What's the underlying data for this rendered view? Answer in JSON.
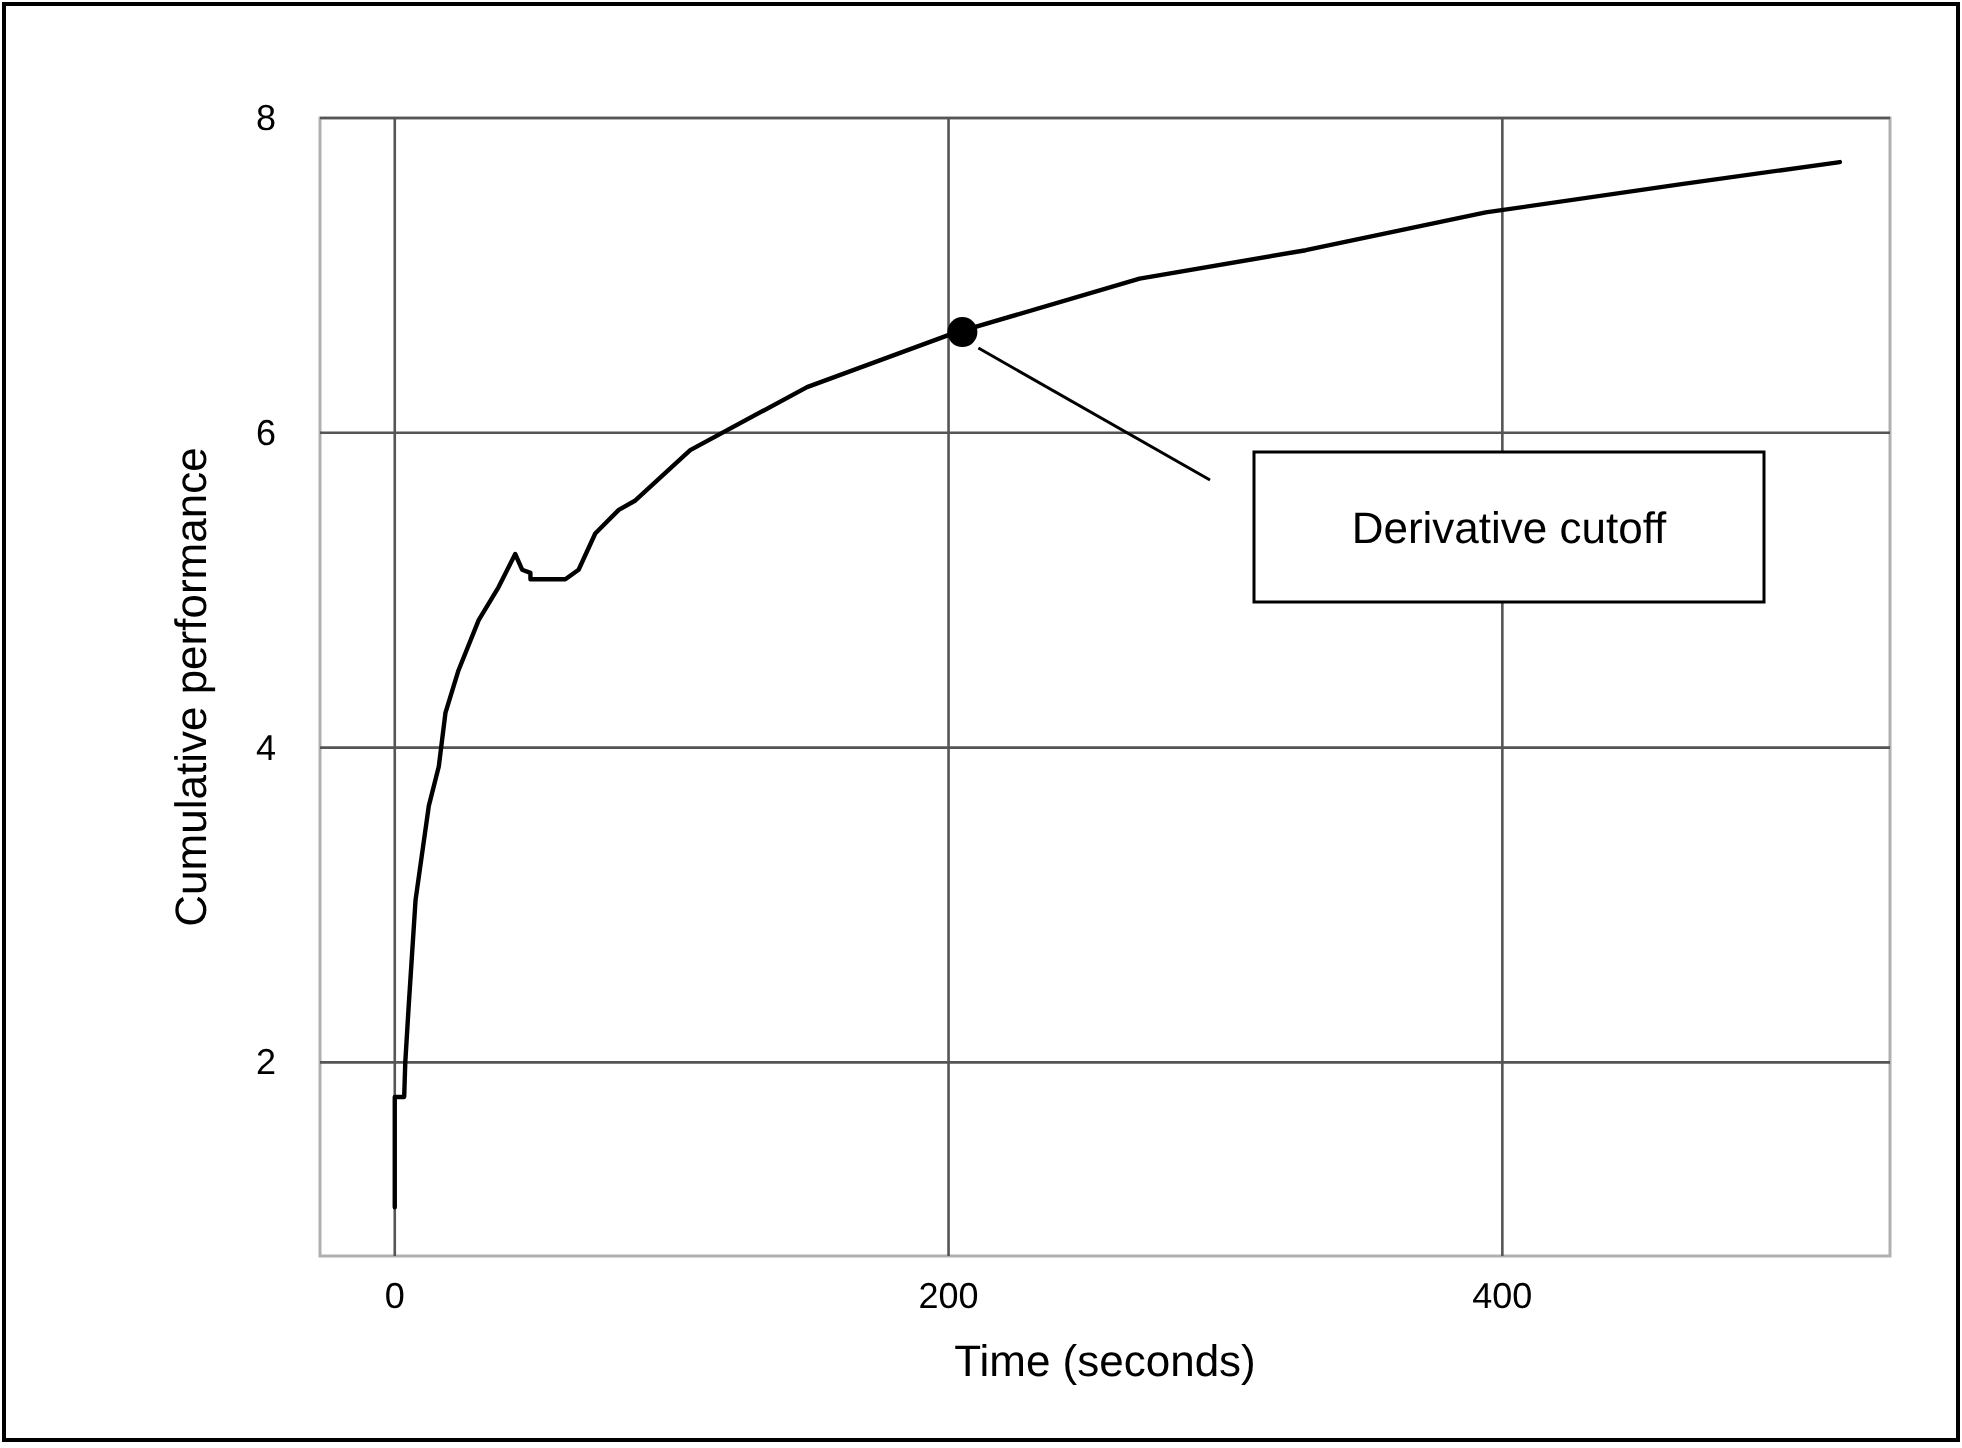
{
  "chart_data": {
    "type": "line",
    "xlabel": "Time (seconds)",
    "ylabel": "Cumulative performance",
    "xlim": [
      -27,
      540
    ],
    "ylim": [
      0.77,
      8
    ],
    "xticks": [
      0,
      200,
      400
    ],
    "yticks": [
      2,
      4,
      6,
      8
    ],
    "grid": true,
    "marker": "none",
    "line_style": "solid",
    "series": [
      {
        "color": "#000000",
        "x": [
          0,
          0,
          3.4,
          3.8,
          5,
          7.5,
          9.9,
          12.3,
          15.9,
          18.3,
          23,
          30.3,
          37.5,
          43.5,
          46,
          49,
          49,
          61.6,
          66.4,
          72.4,
          80.9,
          86.9,
          106.7,
          148.9,
          201.4,
          269,
          329,
          394,
          464.7,
          521.9
        ],
        "values": [
          1.08,
          1.78,
          1.78,
          2.0,
          2.35,
          3.03,
          3.33,
          3.63,
          3.88,
          4.22,
          4.49,
          4.81,
          5.02,
          5.23,
          5.13,
          5.11,
          5.07,
          5.07,
          5.13,
          5.36,
          5.51,
          5.57,
          5.89,
          6.29,
          6.63,
          6.98,
          7.16,
          7.4,
          7.58,
          7.72
        ]
      },
      {
        "type": "scatter",
        "color": "#000000",
        "marker": "circle",
        "x": [
          205
        ],
        "values": [
          6.64
        ]
      }
    ],
    "annotations": [
      "Derivative cutoff"
    ]
  }
}
